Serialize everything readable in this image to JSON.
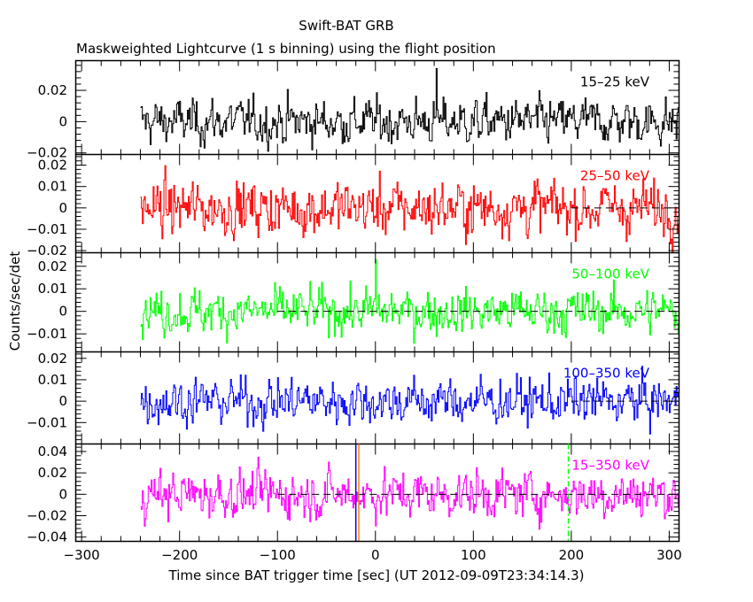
{
  "chart_data": {
    "type": "line",
    "title": "Swift-BAT GRB",
    "subtitle": "Maskweighted Lightcurve (1 s binning) using the flight position",
    "xlabel": "Time since BAT trigger time [sec] (UT 2012-09-09T23:34:14.3)",
    "ylabel": "Counts/sec/det",
    "xlim": [
      -306,
      310
    ],
    "x_ticks": [
      -300,
      -200,
      -100,
      0,
      100,
      200,
      300
    ],
    "x_tick_labels": [
      "−300",
      "−200",
      "−100",
      "0",
      "100",
      "200",
      "300"
    ],
    "data_x_range": [
      -240,
      310
    ],
    "binning_sec": 1,
    "grid": false,
    "vertical_markers": [
      {
        "name": "blue-marker",
        "x": -20,
        "color": "#0000ff",
        "style": "solid"
      },
      {
        "name": "orange-marker",
        "x": -17,
        "color": "#ff8000",
        "style": "solid"
      },
      {
        "name": "green-marker",
        "x": 197,
        "color": "#00ff00",
        "style": "dash-dot"
      }
    ],
    "panels": [
      {
        "band": "15–25 keV",
        "color": "#000000",
        "ylim": [
          -0.021,
          0.039
        ],
        "y_ticks": [
          -0.02,
          0,
          0.02
        ],
        "y_tick_labels": [
          "−0.02",
          "0",
          "0.02"
        ],
        "noise_sigma": 0.008,
        "peak": {
          "x": 62,
          "y": 0.034
        },
        "zero_line_from": null
      },
      {
        "band": "25–50 keV",
        "color": "#ff0000",
        "ylim": [
          -0.021,
          0.025
        ],
        "y_ticks": [
          -0.02,
          -0.01,
          0,
          0.01,
          0.02
        ],
        "y_tick_labels": [
          "−0.02",
          "−0.01",
          "0",
          "0.01",
          "0.02"
        ],
        "noise_sigma": 0.007,
        "peak": null,
        "zero_line_from": 200
      },
      {
        "band": "50–100 keV",
        "color": "#00ff00",
        "ylim": [
          -0.018,
          0.026
        ],
        "y_ticks": [
          -0.01,
          0,
          0.01,
          0.02
        ],
        "y_tick_labels": [
          "−0.01",
          "0",
          "0.01",
          "0.02"
        ],
        "noise_sigma": 0.0055,
        "peak": {
          "x": 0,
          "y": 0.023
        },
        "zero_line_from": -100
      },
      {
        "band": "100–350 keV",
        "color": "#0000ff",
        "ylim": [
          -0.02,
          0.023
        ],
        "y_ticks": [
          -0.01,
          0,
          0.01,
          0.02
        ],
        "y_tick_labels": [
          "−0.01",
          "0",
          "0.01",
          "0.02"
        ],
        "noise_sigma": 0.006,
        "peak": null,
        "zero_line_from": 200
      },
      {
        "band": "15–350 keV",
        "color": "#ff00ff",
        "ylim": [
          -0.044,
          0.047
        ],
        "y_ticks": [
          -0.04,
          -0.02,
          0,
          0.02,
          0.04
        ],
        "y_tick_labels": [
          "−0.04",
          "−0.02",
          "0",
          "0.02",
          "0.04"
        ],
        "noise_sigma": 0.012,
        "peak": null,
        "zero_line_from": -100
      }
    ]
  }
}
